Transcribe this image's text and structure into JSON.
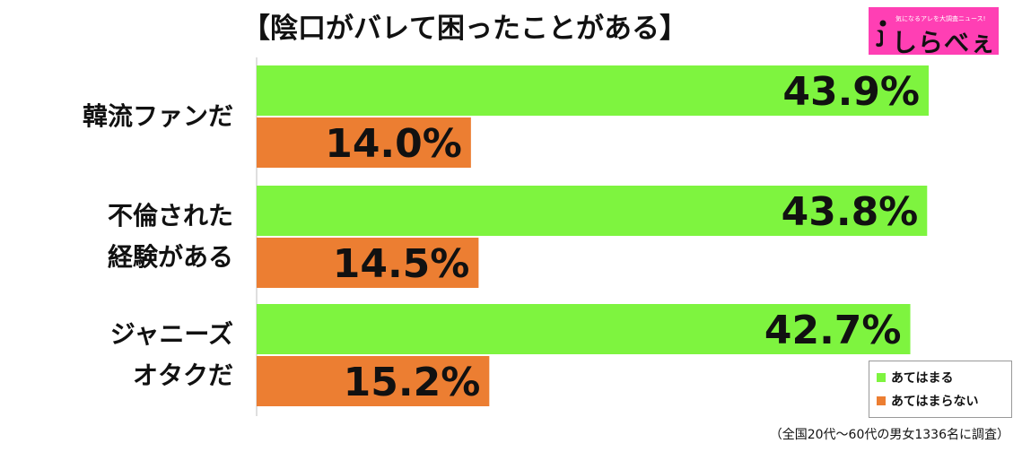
{
  "chart_data": {
    "type": "bar",
    "orientation": "horizontal",
    "title": "【陰口がバレて困ったことがある】",
    "categories": [
      [
        "韓流ファンだ"
      ],
      [
        "不倫された",
        "経験がある"
      ],
      [
        "ジャニーズ",
        "オタクだ"
      ]
    ],
    "series": [
      {
        "name": "あてはまる",
        "color": "#7ef43f",
        "values": [
          43.9,
          43.8,
          42.7
        ],
        "labels": [
          "43.9%",
          "43.8%",
          "42.7%"
        ]
      },
      {
        "name": "あてはまらない",
        "color": "#ec7e32",
        "values": [
          14.0,
          14.5,
          15.2
        ],
        "labels": [
          "14.0%",
          "14.5%",
          "15.2%"
        ]
      }
    ],
    "xlim": [
      0,
      50
    ],
    "grid": false,
    "legend_position": "bottom-right"
  },
  "logo": {
    "tagline": "気になるアレを大調査ニュース!",
    "brand": "しらべぇ"
  },
  "footnote": "（全国20代～60代の男女1336名に調査）"
}
